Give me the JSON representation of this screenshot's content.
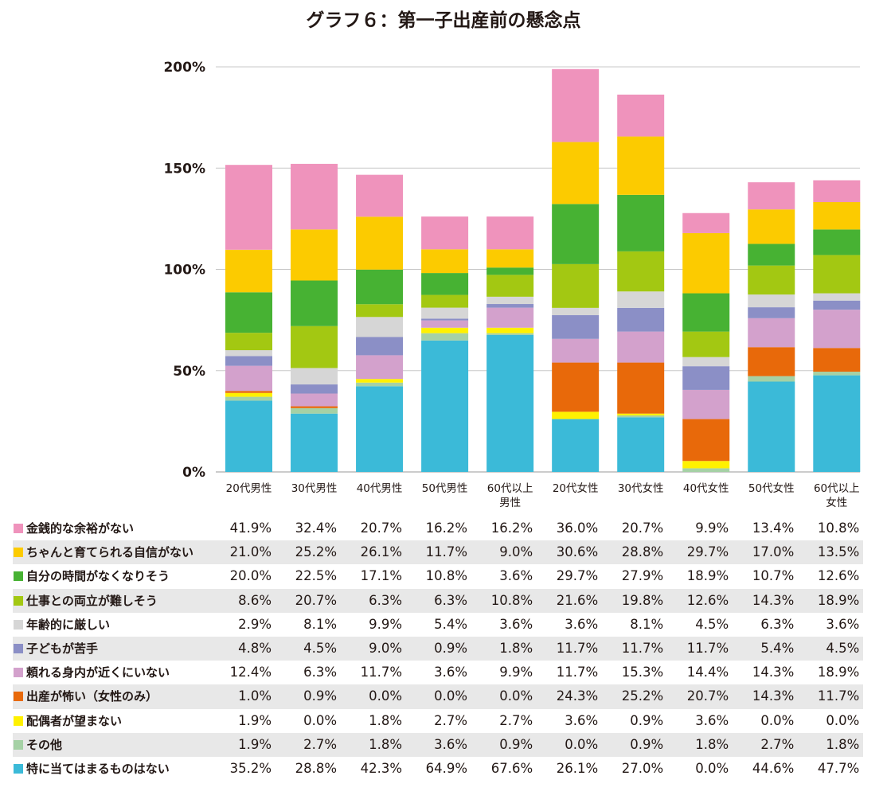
{
  "chart_data": {
    "type": "bar",
    "stacked": true,
    "title": "グラフ６：第一子出産前の懸念点",
    "ylim": [
      0,
      200
    ],
    "yticks": [
      "0%",
      "50%",
      "100%",
      "150%",
      "200%"
    ],
    "grid": true,
    "categories": [
      "20代男性",
      "30代男性",
      "40代男性",
      "50代男性",
      "60代以上男性",
      "20代女性",
      "30代女性",
      "40代女性",
      "50代女性",
      "60代以上女性"
    ],
    "category_lines": [
      [
        "20代男性"
      ],
      [
        "30代男性"
      ],
      [
        "40代男性"
      ],
      [
        "50代男性"
      ],
      [
        "60代以上",
        "男性"
      ],
      [
        "20代女性"
      ],
      [
        "30代女性"
      ],
      [
        "40代女性"
      ],
      [
        "50代女性"
      ],
      [
        "60代以上",
        "女性"
      ]
    ],
    "series": [
      {
        "name": "金銭的な余裕がない",
        "color": "#ef93bc",
        "values": [
          41.9,
          32.4,
          20.7,
          16.2,
          16.2,
          36.0,
          20.7,
          9.9,
          13.4,
          10.8
        ],
        "labels": [
          "41.9%",
          "32.4%",
          "20.7%",
          "16.2%",
          "16.2%",
          "36.0%",
          "20.7%",
          "9.9%",
          "13.4%",
          "10.8%"
        ]
      },
      {
        "name": "ちゃんと育てられる自信がない",
        "color": "#fccb00",
        "values": [
          21.0,
          25.2,
          26.1,
          11.7,
          9.0,
          30.6,
          28.8,
          29.7,
          17.0,
          13.5
        ],
        "labels": [
          "21.0%",
          "25.2%",
          "26.1%",
          "11.7%",
          "9.0%",
          "30.6%",
          "28.8%",
          "29.7%",
          "17.0%",
          "13.5%"
        ]
      },
      {
        "name": "自分の時間がなくなりそう",
        "color": "#47b233",
        "values": [
          20.0,
          22.5,
          17.1,
          10.8,
          3.6,
          29.7,
          27.9,
          18.9,
          10.7,
          12.6
        ],
        "labels": [
          "20.0%",
          "22.5%",
          "17.1%",
          "10.8%",
          "3.6%",
          "29.7%",
          "27.9%",
          "18.9%",
          "10.7%",
          "12.6%"
        ]
      },
      {
        "name": "仕事との両立が難しそう",
        "color": "#a3c812",
        "values": [
          8.6,
          20.7,
          6.3,
          6.3,
          10.8,
          21.6,
          19.8,
          12.6,
          14.3,
          18.9
        ],
        "labels": [
          "8.6%",
          "20.7%",
          "6.3%",
          "6.3%",
          "10.8%",
          "21.6%",
          "19.8%",
          "12.6%",
          "14.3%",
          "18.9%"
        ]
      },
      {
        "name": "年齢的に厳しい",
        "color": "#d6d6d6",
        "values": [
          2.9,
          8.1,
          9.9,
          5.4,
          3.6,
          3.6,
          8.1,
          4.5,
          6.3,
          3.6
        ],
        "labels": [
          "2.9%",
          "8.1%",
          "9.9%",
          "5.4%",
          "3.6%",
          "3.6%",
          "8.1%",
          "4.5%",
          "6.3%",
          "3.6%"
        ]
      },
      {
        "name": "子どもが苦手",
        "color": "#8b8fc6",
        "values": [
          4.8,
          4.5,
          9.0,
          0.9,
          1.8,
          11.7,
          11.7,
          11.7,
          5.4,
          4.5
        ],
        "labels": [
          "4.8%",
          "4.5%",
          "9.0%",
          "0.9%",
          "1.8%",
          "11.7%",
          "11.7%",
          "11.7%",
          "5.4%",
          "4.5%"
        ]
      },
      {
        "name": "頼れる身内が近くにいない",
        "color": "#d3a1cc",
        "values": [
          12.4,
          6.3,
          11.7,
          3.6,
          9.9,
          11.7,
          15.3,
          14.4,
          14.3,
          18.9
        ],
        "labels": [
          "12.4%",
          "6.3%",
          "11.7%",
          "3.6%",
          "9.9%",
          "11.7%",
          "15.3%",
          "14.4%",
          "14.3%",
          "18.9%"
        ]
      },
      {
        "name": "出産が怖い（女性のみ）",
        "color": "#e8690a",
        "values": [
          1.0,
          0.9,
          0.0,
          0.0,
          0.0,
          24.3,
          25.2,
          20.7,
          14.3,
          11.7
        ],
        "labels": [
          "1.0%",
          "0.9%",
          "0.0%",
          "0.0%",
          "0.0%",
          "24.3%",
          "25.2%",
          "20.7%",
          "14.3%",
          "11.7%"
        ]
      },
      {
        "name": "配偶者が望まない",
        "color": "#fff100",
        "values": [
          1.9,
          0.0,
          1.8,
          2.7,
          2.7,
          3.6,
          0.9,
          3.6,
          0.0,
          0.0
        ],
        "labels": [
          "1.9%",
          "0.0%",
          "1.8%",
          "2.7%",
          "2.7%",
          "3.6%",
          "0.9%",
          "3.6%",
          "0.0%",
          "0.0%"
        ]
      },
      {
        "name": "その他",
        "color": "#a5d1a5",
        "values": [
          1.9,
          2.7,
          1.8,
          3.6,
          0.9,
          0.0,
          0.9,
          1.8,
          2.7,
          1.8
        ],
        "labels": [
          "1.9%",
          "2.7%",
          "1.8%",
          "3.6%",
          "0.9%",
          "0.0%",
          "0.9%",
          "1.8%",
          "2.7%",
          "1.8%"
        ]
      },
      {
        "name": "特に当てはまるものはない",
        "color": "#3bbad8",
        "values": [
          35.2,
          28.8,
          42.3,
          64.9,
          67.6,
          26.1,
          27.0,
          0.0,
          44.6,
          47.7
        ],
        "labels": [
          "35.2%",
          "28.8%",
          "42.3%",
          "64.9%",
          "67.6%",
          "26.1%",
          "27.0%",
          "0.0%",
          "44.6%",
          "47.7%"
        ]
      }
    ]
  }
}
